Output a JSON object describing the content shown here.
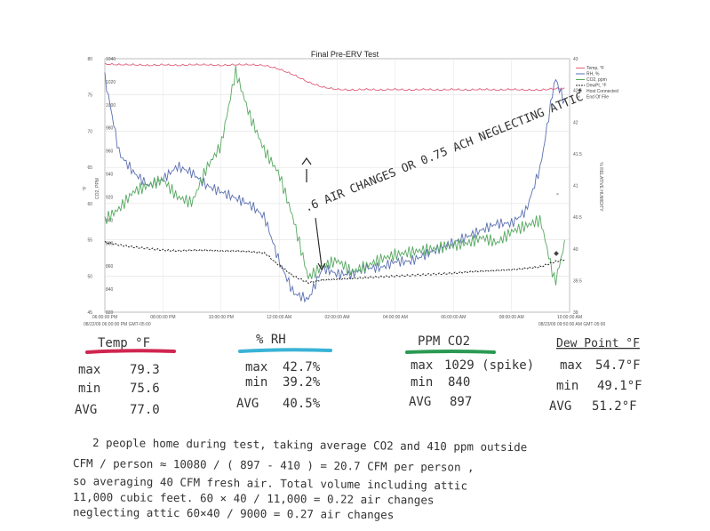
{
  "chart_data": {
    "type": "line",
    "title": "Final Pre-ERV Test",
    "ylabel_left": "°F",
    "ylabel_mid": "CO2, PPM",
    "ylabel_right": "% RELATIVE HUMIDITY",
    "y_left": {
      "min": 45,
      "max": 80,
      "ticks": [
        "80",
        "75",
        "70",
        "65",
        "60",
        "55",
        "50",
        "45"
      ]
    },
    "y_mid": {
      "min": 820,
      "max": 1040,
      "ticks": [
        "1040",
        "1020",
        "1000",
        "980",
        "960",
        "940",
        "920",
        "900",
        "880",
        "860",
        "840",
        "820"
      ]
    },
    "y_right": {
      "min": 39,
      "max": 43,
      "ticks": [
        "43",
        "42.5",
        "42",
        "41.5",
        "41",
        "40.5",
        "40",
        "39.5",
        "39"
      ]
    },
    "x_ticks": [
      "06:00:00 PM",
      "08:00:00 PM",
      "10:00:00 PM",
      "12:00:00 AM",
      "02:00:00 AM",
      "04:00:00 AM",
      "06:00:00 AM",
      "08:00:00 AM",
      "10:00:00 AM"
    ],
    "x_start_label": "08/22/09 06:00:00 PM GMT-05:00",
    "x_end_label": "08/23/09 09:50:00 AM GMT-05:00",
    "x_hours": [
      0,
      0.5,
      1,
      1.5,
      2,
      2.5,
      3,
      3.5,
      4,
      4.5,
      5,
      5.5,
      6,
      6.5,
      7,
      7.5,
      8,
      8.5,
      9,
      9.5,
      10,
      10.5,
      11,
      11.5,
      12,
      12.5,
      13,
      13.5,
      14,
      14.5,
      15,
      15.5,
      15.83
    ],
    "series": [
      {
        "name": "Temp, °F",
        "color": "#e0607a",
        "axis": "left",
        "values": [
          79.3,
          79.2,
          79.2,
          79.1,
          79.2,
          79.1,
          79.2,
          79.2,
          79.1,
          79.2,
          79.2,
          79.1,
          78.6,
          77.8,
          76.8,
          76.1,
          75.8,
          75.7,
          75.8,
          75.7,
          75.8,
          75.7,
          75.8,
          75.7,
          75.8,
          75.7,
          75.8,
          75.7,
          75.8,
          75.7,
          75.7,
          75.9,
          75.9
        ]
      },
      {
        "name": "RH, %",
        "color": "#5a6fb0",
        "axis": "right",
        "values": [
          42.7,
          41.5,
          41.2,
          41.0,
          41.1,
          41.3,
          41.2,
          41.0,
          40.9,
          40.8,
          40.7,
          40.5,
          39.8,
          39.3,
          39.2,
          39.7,
          39.6,
          39.6,
          39.7,
          39.7,
          39.8,
          39.8,
          39.9,
          40.0,
          40.1,
          40.2,
          40.3,
          40.4,
          40.4,
          40.6,
          41.3,
          42.7,
          42.3
        ]
      },
      {
        "name": "CO2, ppm",
        "color": "#55a860",
        "axis": "mid",
        "values": [
          900,
          910,
          925,
          930,
          935,
          920,
          915,
          945,
          965,
          1029,
          990,
          960,
          940,
          900,
          850,
          860,
          865,
          855,
          860,
          866,
          870,
          872,
          874,
          876,
          878,
          880,
          885,
          880,
          890,
          895,
          900,
          845,
          880
        ]
      },
      {
        "name": "DewPt, °F",
        "color": "#222222",
        "axis": "left",
        "dashed": true,
        "values": [
          54.7,
          54.3,
          54.0,
          53.8,
          53.6,
          53.5,
          53.6,
          53.6,
          53.5,
          53.5,
          53.4,
          53.2,
          51.5,
          50.0,
          49.1,
          49.5,
          49.6,
          49.7,
          49.8,
          49.9,
          50.0,
          50.1,
          50.2,
          50.3,
          50.4,
          50.6,
          50.7,
          50.8,
          50.9,
          51.1,
          51.3,
          52.0,
          52.3
        ]
      }
    ],
    "legend_extra": [
      "Host Connected",
      "End Of File"
    ],
    "legend_placement": "top-right"
  },
  "annotations": {
    "arrow_note": ".6 AIR CHANGES OR 0.75 ACH NEGLECTING ATTIC"
  },
  "summary": {
    "temp": {
      "header": "Temp °F",
      "max_label": "max",
      "max": "79.3",
      "min_label": "min",
      "min": "75.6",
      "avg_label": "AVG",
      "avg": "77.0",
      "color": "#d0254f"
    },
    "rh": {
      "header": "% RH",
      "max_label": "max",
      "max": "42.7%",
      "min_label": "min",
      "min": "39.2%",
      "avg_label": "AVG",
      "avg": "40.5%",
      "color": "#39b3d6"
    },
    "co2": {
      "header": "PPM CO2",
      "max_label": "max",
      "max": "1029 (spike)",
      "min_label": "min",
      "min": "840",
      "avg_label": "AVG",
      "avg": "897",
      "color": "#2a9a52"
    },
    "dew": {
      "header": "Dew Point °F",
      "max_label": "max",
      "max": "54.7°F",
      "min_label": "min",
      "min": "49.1°F",
      "avg_label": "AVG",
      "avg": "51.2°F",
      "color": "#333333"
    }
  },
  "notes": [
    "2 people home during test, taking average CO2 and 410 ppm outside",
    "CFM / person ≈ 10080 / ( 897 - 410 ) = 20.7 CFM per person ,",
    "so averaging 40 CFM fresh air. Total volume including attic",
    "11,000 cubic feet.  60 × 40 / 11,000 = 0.22 air changes",
    "neglecting attic  60×40 / 9000 = 0.27 air changes"
  ]
}
